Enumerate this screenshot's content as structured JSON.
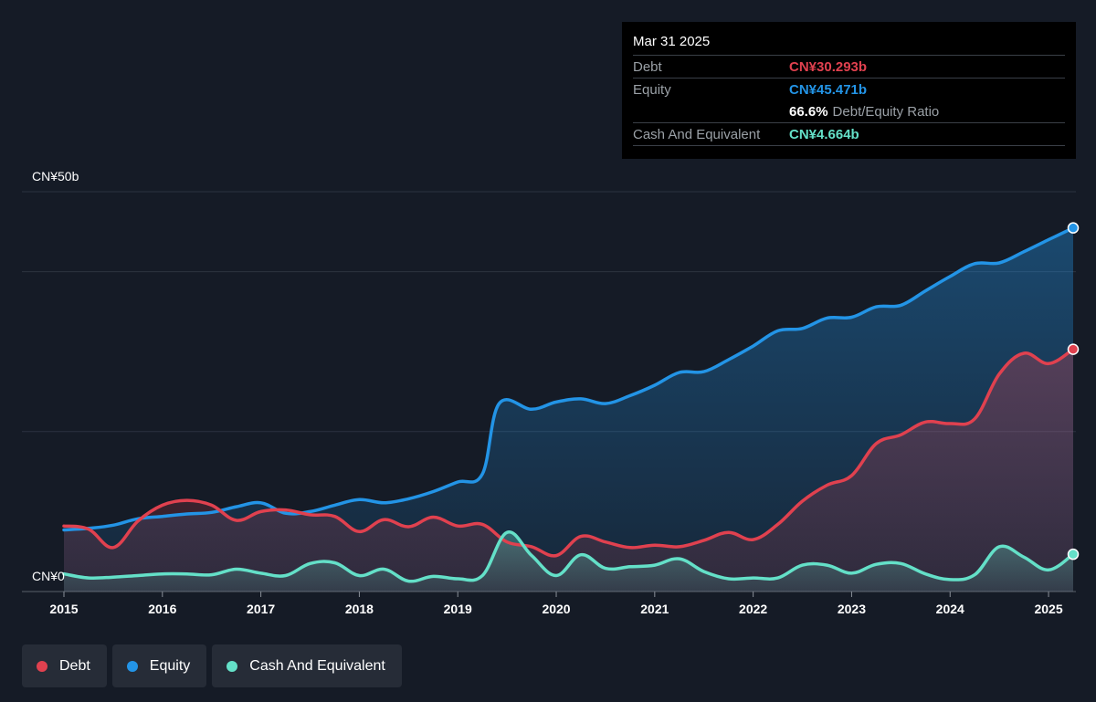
{
  "tooltip": {
    "date": "Mar 31 2025",
    "debt_label": "Debt",
    "debt_value": "CN¥30.293b",
    "equity_label": "Equity",
    "equity_value": "CN¥45.471b",
    "ratio_value": "66.6%",
    "ratio_label": "Debt/Equity Ratio",
    "cash_label": "Cash And Equivalent",
    "cash_value": "CN¥4.664b"
  },
  "legend": {
    "debt": "Debt",
    "equity": "Equity",
    "cash": "Cash And Equivalent"
  },
  "colors": {
    "debt": "#e0414f",
    "equity": "#2394e6",
    "cash": "#64e0c8",
    "background": "#151b26"
  },
  "chart_data": {
    "type": "area",
    "ylim": [
      0,
      50
    ],
    "y_unit": "CN¥ billions",
    "y_tick_labels": [
      "CN¥0",
      "CN¥50b"
    ],
    "x_range": [
      2015,
      2025.25
    ],
    "x_tick_labels": [
      "2015",
      "2016",
      "2017",
      "2018",
      "2019",
      "2020",
      "2021",
      "2022",
      "2023",
      "2024",
      "2025"
    ],
    "series": [
      {
        "name": "Equity",
        "x": [
          2015.0,
          2015.25,
          2015.5,
          2015.75,
          2016.0,
          2016.25,
          2016.5,
          2016.75,
          2017.0,
          2017.25,
          2017.5,
          2017.75,
          2018.0,
          2018.25,
          2018.5,
          2018.75,
          2019.0,
          2019.25,
          2019.42,
          2019.75,
          2020.0,
          2020.25,
          2020.5,
          2020.75,
          2021.0,
          2021.25,
          2021.5,
          2021.75,
          2022.0,
          2022.25,
          2022.5,
          2022.75,
          2023.0,
          2023.25,
          2023.5,
          2023.75,
          2024.0,
          2024.25,
          2024.5,
          2024.75,
          2025.0,
          2025.25
        ],
        "values": [
          7.7,
          7.9,
          8.3,
          9.1,
          9.4,
          9.7,
          9.9,
          10.6,
          11.1,
          9.8,
          10.0,
          10.8,
          11.5,
          11.1,
          11.6,
          12.5,
          13.7,
          14.7,
          23.5,
          22.8,
          23.7,
          24.1,
          23.5,
          24.5,
          25.8,
          27.4,
          27.5,
          29.0,
          30.7,
          32.6,
          32.9,
          34.2,
          34.3,
          35.6,
          35.8,
          37.6,
          39.4,
          41.0,
          41.1,
          42.5,
          44.0,
          45.471
        ]
      },
      {
        "name": "Debt",
        "x": [
          2015.0,
          2015.25,
          2015.5,
          2015.75,
          2016.0,
          2016.25,
          2016.5,
          2016.75,
          2017.0,
          2017.25,
          2017.5,
          2017.75,
          2018.0,
          2018.25,
          2018.5,
          2018.75,
          2019.0,
          2019.25,
          2019.5,
          2019.75,
          2020.0,
          2020.25,
          2020.5,
          2020.75,
          2021.0,
          2021.25,
          2021.5,
          2021.75,
          2022.0,
          2022.25,
          2022.5,
          2022.75,
          2023.0,
          2023.25,
          2023.5,
          2023.75,
          2024.0,
          2024.25,
          2024.5,
          2024.75,
          2025.0,
          2025.25
        ],
        "values": [
          8.2,
          7.8,
          5.5,
          8.8,
          10.8,
          11.4,
          10.8,
          8.9,
          10.0,
          10.2,
          9.6,
          9.4,
          7.5,
          9.0,
          8.1,
          9.3,
          8.2,
          8.4,
          6.2,
          5.6,
          4.5,
          6.9,
          6.2,
          5.5,
          5.8,
          5.6,
          6.4,
          7.4,
          6.5,
          8.4,
          11.3,
          13.3,
          14.5,
          18.5,
          19.6,
          21.2,
          21.0,
          21.6,
          27.2,
          29.8,
          28.5,
          30.293
        ]
      },
      {
        "name": "Cash And Equivalent",
        "x": [
          2015.0,
          2015.25,
          2015.5,
          2015.75,
          2016.0,
          2016.25,
          2016.5,
          2016.75,
          2017.0,
          2017.25,
          2017.5,
          2017.75,
          2018.0,
          2018.25,
          2018.5,
          2018.75,
          2019.0,
          2019.25,
          2019.5,
          2019.75,
          2020.0,
          2020.25,
          2020.5,
          2020.75,
          2021.0,
          2021.25,
          2021.5,
          2021.75,
          2022.0,
          2022.25,
          2022.5,
          2022.75,
          2023.0,
          2023.25,
          2023.5,
          2023.75,
          2024.0,
          2024.25,
          2024.5,
          2024.75,
          2025.0,
          2025.25
        ],
        "values": [
          2.2,
          1.7,
          1.8,
          2.0,
          2.2,
          2.2,
          2.1,
          2.8,
          2.3,
          2.0,
          3.5,
          3.6,
          2.0,
          2.8,
          1.3,
          1.9,
          1.6,
          2.0,
          7.4,
          4.5,
          2.0,
          4.6,
          2.9,
          3.1,
          3.3,
          4.1,
          2.5,
          1.6,
          1.7,
          1.7,
          3.3,
          3.3,
          2.3,
          3.4,
          3.5,
          2.2,
          1.5,
          2.1,
          5.6,
          4.3,
          2.7,
          4.664
        ]
      }
    ]
  }
}
